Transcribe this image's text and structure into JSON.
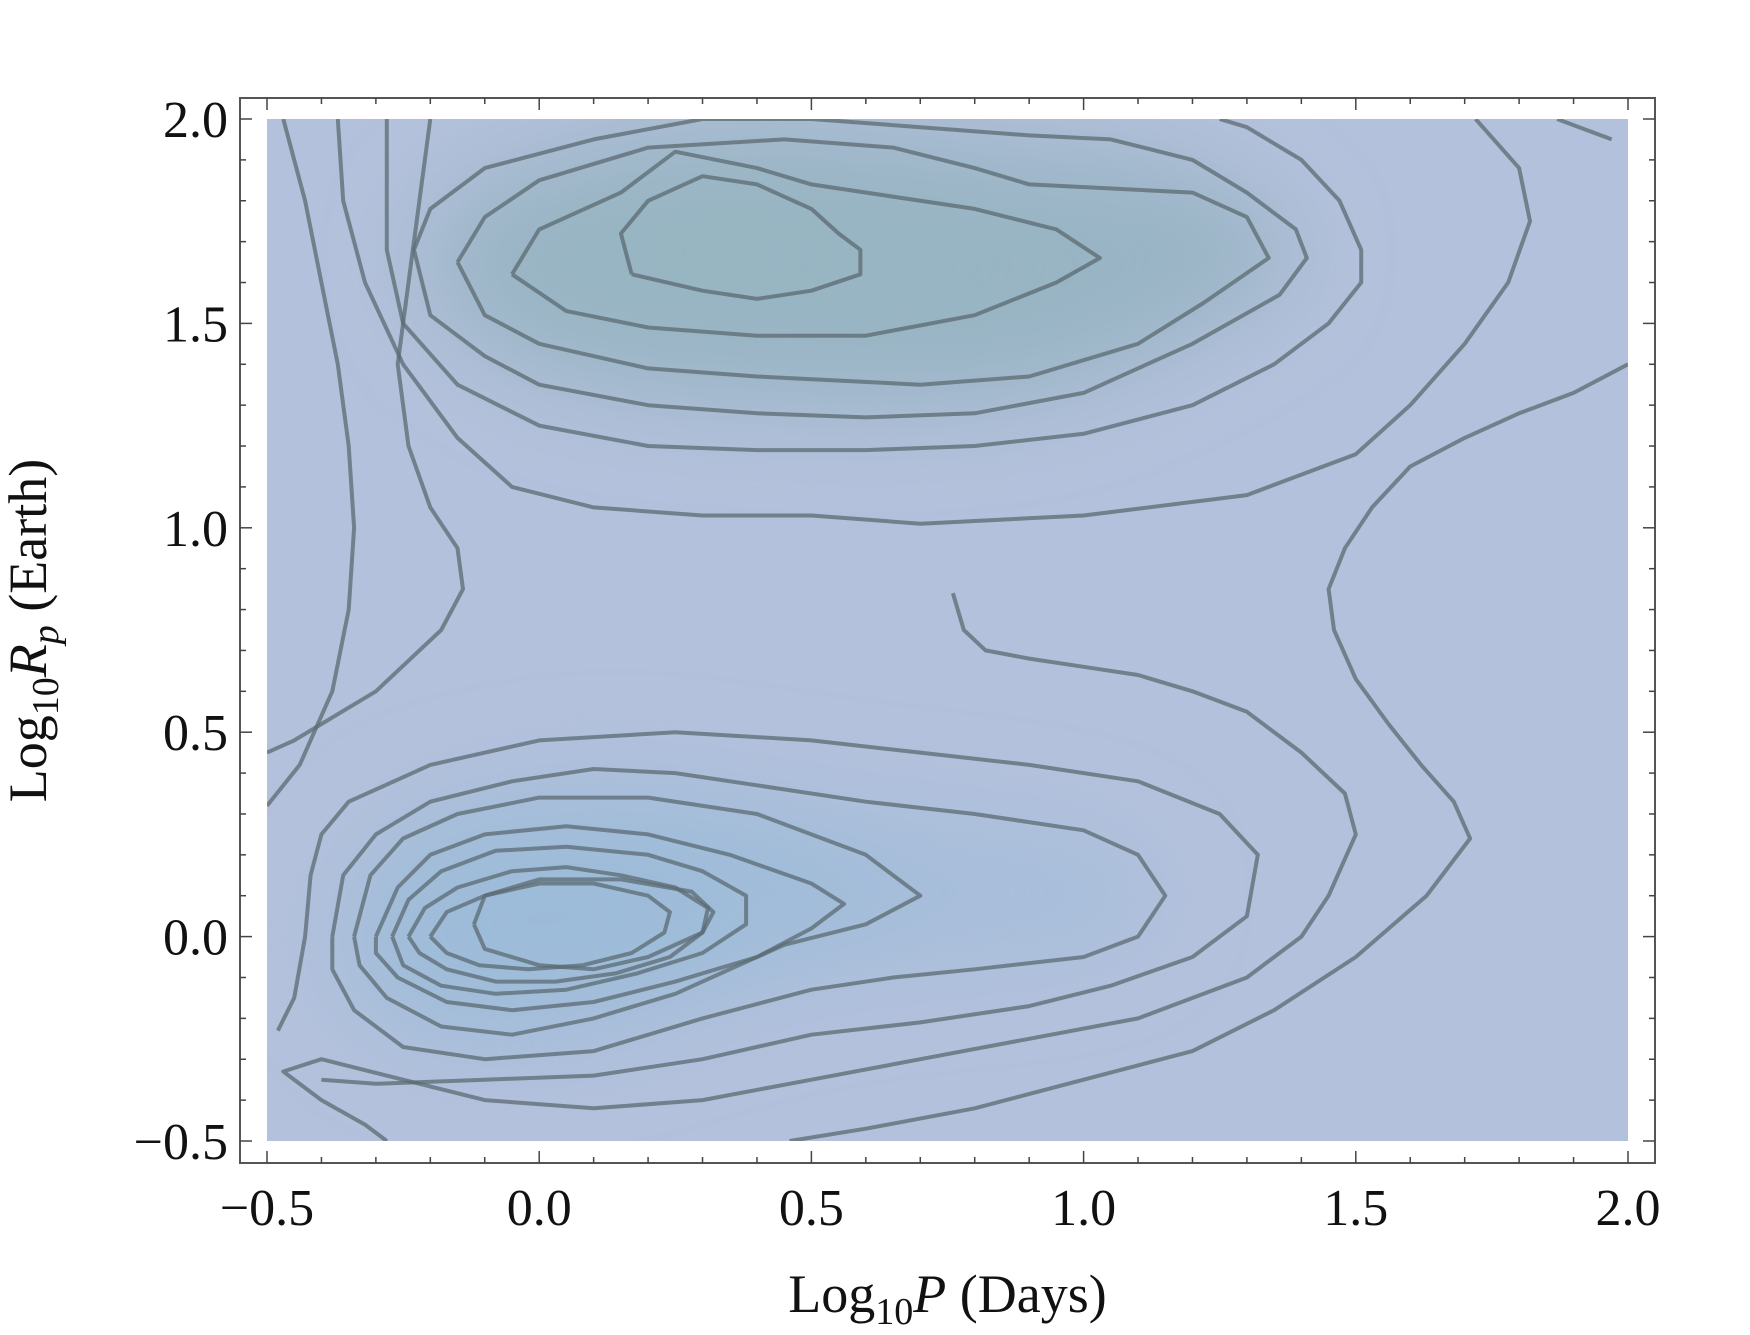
{
  "chart_data": {
    "type": "contour",
    "xlabel": {
      "prefix": "Log",
      "sub": "10",
      "var": "P",
      "suffix": " (Days)"
    },
    "ylabel": {
      "prefix": "Log",
      "sub": "10",
      "var": "R",
      "varsub": "p",
      "suffix": " (Earth)"
    },
    "xlim": [
      -0.5,
      2.0
    ],
    "ylim": [
      -0.5,
      2.0
    ],
    "x_ticks": [
      "−0.5",
      "0.0",
      "0.5",
      "1.0",
      "1.5",
      "2.0"
    ],
    "y_ticks": [
      "−0.5",
      "0.0",
      "0.5",
      "1.0",
      "1.5",
      "2.0"
    ],
    "colors": {
      "background_fill": "#b4c1dc",
      "peak_fill": "#7aa6b7",
      "contour_line": "#5b6b72"
    },
    "density_peaks": [
      {
        "x": 0.05,
        "y": 0.05,
        "amplitude": 1.0
      },
      {
        "x": 0.4,
        "y": 1.68,
        "amplitude": 0.78
      },
      {
        "x": 0.95,
        "y": 1.62,
        "amplitude": 0.45
      },
      {
        "x": 0.95,
        "y": 0.15,
        "amplitude": 0.3
      }
    ],
    "contours": [
      [
        [
          -0.12,
          0.03
        ],
        [
          -0.1,
          -0.03
        ],
        [
          0.0,
          -0.07
        ],
        [
          0.1,
          -0.08
        ],
        [
          0.2,
          -0.05
        ],
        [
          0.3,
          0.01
        ],
        [
          0.32,
          0.06
        ],
        [
          0.28,
          0.11
        ],
        [
          0.15,
          0.14
        ],
        [
          0.0,
          0.14
        ],
        [
          -0.1,
          0.1
        ],
        [
          -0.12,
          0.03
        ]
      ],
      [
        [
          0.17,
          1.62
        ],
        [
          0.3,
          1.58
        ],
        [
          0.4,
          1.56
        ],
        [
          0.5,
          1.58
        ],
        [
          0.59,
          1.62
        ],
        [
          0.59,
          1.68
        ],
        [
          0.55,
          1.72
        ],
        [
          0.5,
          1.78
        ],
        [
          0.4,
          1.84
        ],
        [
          0.3,
          1.86
        ],
        [
          0.2,
          1.8
        ],
        [
          0.15,
          1.72
        ],
        [
          0.17,
          1.62
        ]
      ],
      [
        [
          -0.05,
          1.62
        ],
        [
          0.05,
          1.53
        ],
        [
          0.2,
          1.49
        ],
        [
          0.4,
          1.47
        ],
        [
          0.6,
          1.47
        ],
        [
          0.8,
          1.52
        ],
        [
          0.95,
          1.6
        ],
        [
          1.03,
          1.66
        ],
        [
          0.95,
          1.73
        ],
        [
          0.8,
          1.78
        ],
        [
          0.5,
          1.84
        ],
        [
          0.4,
          1.88
        ],
        [
          0.25,
          1.92
        ],
        [
          0.15,
          1.82
        ],
        [
          0.0,
          1.73
        ],
        [
          -0.05,
          1.62
        ]
      ],
      [
        [
          -0.15,
          1.65
        ],
        [
          -0.1,
          1.52
        ],
        [
          0.0,
          1.45
        ],
        [
          0.2,
          1.39
        ],
        [
          0.4,
          1.37
        ],
        [
          0.7,
          1.35
        ],
        [
          0.9,
          1.37
        ],
        [
          1.1,
          1.45
        ],
        [
          1.22,
          1.55
        ],
        [
          1.34,
          1.66
        ],
        [
          1.3,
          1.76
        ],
        [
          1.2,
          1.82
        ],
        [
          0.9,
          1.84
        ],
        [
          0.8,
          1.88
        ],
        [
          0.65,
          1.93
        ],
        [
          0.45,
          1.95
        ],
        [
          0.2,
          1.93
        ],
        [
          0.0,
          1.85
        ],
        [
          -0.1,
          1.76
        ],
        [
          -0.15,
          1.65
        ]
      ],
      [
        [
          -0.23,
          1.68
        ],
        [
          -0.2,
          1.52
        ],
        [
          -0.1,
          1.42
        ],
        [
          0.0,
          1.35
        ],
        [
          0.2,
          1.3
        ],
        [
          0.4,
          1.28
        ],
        [
          0.6,
          1.27
        ],
        [
          0.8,
          1.28
        ],
        [
          1.0,
          1.33
        ],
        [
          1.2,
          1.45
        ],
        [
          1.36,
          1.57
        ],
        [
          1.41,
          1.66
        ],
        [
          1.39,
          1.73
        ],
        [
          1.3,
          1.82
        ],
        [
          1.2,
          1.9
        ],
        [
          1.05,
          1.95
        ],
        [
          0.9,
          1.96
        ],
        [
          0.7,
          1.98
        ],
        [
          0.5,
          2.0
        ],
        [
          0.3,
          2.0
        ],
        [
          0.1,
          1.95
        ],
        [
          -0.1,
          1.88
        ],
        [
          -0.2,
          1.78
        ],
        [
          -0.23,
          1.68
        ]
      ],
      [
        [
          -0.28,
          2.0
        ],
        [
          -0.28,
          1.68
        ],
        [
          -0.25,
          1.5
        ],
        [
          -0.15,
          1.35
        ],
        [
          0.0,
          1.25
        ],
        [
          0.2,
          1.2
        ],
        [
          0.4,
          1.19
        ],
        [
          0.6,
          1.19
        ],
        [
          0.8,
          1.2
        ],
        [
          1.0,
          1.23
        ],
        [
          1.2,
          1.3
        ],
        [
          1.35,
          1.4
        ],
        [
          1.45,
          1.5
        ],
        [
          1.51,
          1.6
        ],
        [
          1.51,
          1.68
        ],
        [
          1.47,
          1.8
        ],
        [
          1.4,
          1.9
        ],
        [
          1.3,
          1.98
        ],
        [
          1.25,
          2.0
        ]
      ],
      [
        [
          -0.37,
          2.0
        ],
        [
          -0.36,
          1.8
        ],
        [
          -0.32,
          1.6
        ],
        [
          -0.25,
          1.4
        ],
        [
          -0.15,
          1.22
        ],
        [
          -0.05,
          1.1
        ],
        [
          0.1,
          1.05
        ],
        [
          0.3,
          1.03
        ],
        [
          0.5,
          1.03
        ],
        [
          0.7,
          1.01
        ],
        [
          1.0,
          1.03
        ],
        [
          1.3,
          1.08
        ],
        [
          1.5,
          1.18
        ],
        [
          1.6,
          1.3
        ],
        [
          1.7,
          1.45
        ],
        [
          1.78,
          1.6
        ],
        [
          1.82,
          1.75
        ],
        [
          1.8,
          1.88
        ],
        [
          1.72,
          2.0
        ]
      ],
      [
        [
          -0.47,
          2.0
        ],
        [
          -0.43,
          1.8
        ],
        [
          -0.4,
          1.6
        ],
        [
          -0.37,
          1.4
        ],
        [
          -0.35,
          1.2
        ],
        [
          -0.34,
          1.0
        ],
        [
          -0.35,
          0.8
        ],
        [
          -0.38,
          0.6
        ],
        [
          -0.44,
          0.42
        ],
        [
          -0.5,
          0.32
        ]
      ],
      [
        [
          -0.2,
          2.0
        ],
        [
          -0.22,
          1.8
        ],
        [
          -0.24,
          1.6
        ],
        [
          -0.26,
          1.4
        ],
        [
          -0.24,
          1.2
        ],
        [
          -0.2,
          1.05
        ],
        [
          -0.15,
          0.95
        ],
        [
          -0.14,
          0.85
        ],
        [
          -0.18,
          0.75
        ],
        [
          -0.3,
          0.6
        ],
        [
          -0.45,
          0.48
        ],
        [
          -0.5,
          0.45
        ]
      ],
      [
        [
          1.97,
          1.95
        ],
        [
          1.93,
          1.97
        ],
        [
          1.87,
          2.0
        ]
      ],
      [
        [
          2.0,
          1.4
        ],
        [
          1.9,
          1.33
        ],
        [
          1.8,
          1.28
        ],
        [
          1.7,
          1.22
        ],
        [
          1.6,
          1.15
        ],
        [
          1.53,
          1.05
        ],
        [
          1.48,
          0.95
        ],
        [
          1.45,
          0.85
        ],
        [
          1.46,
          0.75
        ],
        [
          1.5,
          0.63
        ],
        [
          1.56,
          0.52
        ],
        [
          1.62,
          0.42
        ],
        [
          1.68,
          0.33
        ],
        [
          1.71,
          0.24
        ],
        [
          1.63,
          0.1
        ],
        [
          1.5,
          -0.05
        ],
        [
          1.35,
          -0.18
        ],
        [
          1.2,
          -0.28
        ],
        [
          1.0,
          -0.35
        ],
        [
          0.8,
          -0.42
        ],
        [
          0.6,
          -0.47
        ],
        [
          0.46,
          -0.5
        ]
      ],
      [
        [
          0.76,
          0.84
        ],
        [
          0.78,
          0.75
        ],
        [
          0.82,
          0.7
        ],
        [
          0.9,
          0.68
        ],
        [
          1.0,
          0.66
        ],
        [
          1.1,
          0.64
        ],
        [
          1.2,
          0.6
        ],
        [
          1.3,
          0.55
        ],
        [
          1.4,
          0.45
        ],
        [
          1.48,
          0.35
        ],
        [
          1.5,
          0.25
        ],
        [
          1.45,
          0.1
        ],
        [
          1.4,
          0.0
        ],
        [
          1.3,
          -0.1
        ],
        [
          1.1,
          -0.2
        ],
        [
          0.9,
          -0.25
        ],
        [
          0.7,
          -0.3
        ],
        [
          0.5,
          -0.35
        ],
        [
          0.3,
          -0.4
        ],
        [
          0.1,
          -0.42
        ],
        [
          -0.1,
          -0.4
        ],
        [
          -0.25,
          -0.35
        ],
        [
          -0.4,
          -0.3
        ],
        [
          -0.47,
          -0.33
        ],
        [
          -0.4,
          -0.4
        ],
        [
          -0.32,
          -0.46
        ],
        [
          -0.28,
          -0.5
        ]
      ],
      [
        [
          -0.48,
          -0.23
        ],
        [
          -0.45,
          -0.15
        ],
        [
          -0.43,
          0.0
        ],
        [
          -0.42,
          0.15
        ],
        [
          -0.4,
          0.25
        ],
        [
          -0.35,
          0.33
        ],
        [
          -0.2,
          0.42
        ],
        [
          0.0,
          0.48
        ],
        [
          0.25,
          0.5
        ],
        [
          0.5,
          0.48
        ],
        [
          0.7,
          0.45
        ],
        [
          0.9,
          0.42
        ],
        [
          1.1,
          0.38
        ],
        [
          1.25,
          0.3
        ],
        [
          1.32,
          0.2
        ],
        [
          1.3,
          0.05
        ],
        [
          1.2,
          -0.05
        ],
        [
          1.05,
          -0.12
        ],
        [
          0.9,
          -0.17
        ],
        [
          0.7,
          -0.21
        ],
        [
          0.5,
          -0.24
        ],
        [
          0.3,
          -0.3
        ],
        [
          0.1,
          -0.34
        ],
        [
          -0.1,
          -0.35
        ],
        [
          -0.3,
          -0.36
        ],
        [
          -0.4,
          -0.35
        ]
      ],
      [
        [
          -0.38,
          0.0
        ],
        [
          -0.36,
          0.15
        ],
        [
          -0.3,
          0.25
        ],
        [
          -0.2,
          0.33
        ],
        [
          -0.05,
          0.38
        ],
        [
          0.1,
          0.41
        ],
        [
          0.25,
          0.4
        ],
        [
          0.4,
          0.37
        ],
        [
          0.6,
          0.33
        ],
        [
          0.8,
          0.3
        ],
        [
          1.0,
          0.26
        ],
        [
          1.1,
          0.2
        ],
        [
          1.15,
          0.1
        ],
        [
          1.1,
          0.0
        ],
        [
          1.0,
          -0.05
        ],
        [
          0.8,
          -0.08
        ],
        [
          0.65,
          -0.1
        ],
        [
          0.5,
          -0.13
        ],
        [
          0.3,
          -0.2
        ],
        [
          0.1,
          -0.28
        ],
        [
          -0.1,
          -0.3
        ],
        [
          -0.25,
          -0.27
        ],
        [
          -0.34,
          -0.18
        ],
        [
          -0.38,
          -0.08
        ],
        [
          -0.38,
          0.0
        ]
      ],
      [
        [
          -0.34,
          0.0
        ],
        [
          -0.31,
          0.15
        ],
        [
          -0.25,
          0.24
        ],
        [
          -0.15,
          0.3
        ],
        [
          0.0,
          0.34
        ],
        [
          0.2,
          0.34
        ],
        [
          0.4,
          0.3
        ],
        [
          0.6,
          0.2
        ],
        [
          0.7,
          0.1
        ],
        [
          0.6,
          0.03
        ],
        [
          0.45,
          -0.02
        ],
        [
          0.35,
          -0.08
        ],
        [
          0.25,
          -0.14
        ],
        [
          0.1,
          -0.2
        ],
        [
          -0.05,
          -0.24
        ],
        [
          -0.18,
          -0.22
        ],
        [
          -0.28,
          -0.15
        ],
        [
          -0.33,
          -0.07
        ],
        [
          -0.34,
          0.0
        ]
      ],
      [
        [
          -0.3,
          0.0
        ],
        [
          -0.26,
          0.12
        ],
        [
          -0.2,
          0.2
        ],
        [
          -0.1,
          0.25
        ],
        [
          0.05,
          0.27
        ],
        [
          0.2,
          0.25
        ],
        [
          0.35,
          0.2
        ],
        [
          0.5,
          0.13
        ],
        [
          0.56,
          0.08
        ],
        [
          0.5,
          0.02
        ],
        [
          0.4,
          -0.05
        ],
        [
          0.25,
          -0.11
        ],
        [
          0.1,
          -0.16
        ],
        [
          -0.05,
          -0.18
        ],
        [
          -0.17,
          -0.16
        ],
        [
          -0.26,
          -0.1
        ],
        [
          -0.3,
          -0.04
        ],
        [
          -0.3,
          0.0
        ]
      ],
      [
        [
          -0.27,
          0.0
        ],
        [
          -0.24,
          0.09
        ],
        [
          -0.18,
          0.16
        ],
        [
          -0.08,
          0.21
        ],
        [
          0.05,
          0.22
        ],
        [
          0.2,
          0.2
        ],
        [
          0.3,
          0.16
        ],
        [
          0.38,
          0.1
        ],
        [
          0.38,
          0.03
        ],
        [
          0.3,
          -0.04
        ],
        [
          0.18,
          -0.09
        ],
        [
          0.05,
          -0.13
        ],
        [
          -0.08,
          -0.14
        ],
        [
          -0.18,
          -0.12
        ],
        [
          -0.25,
          -0.07
        ],
        [
          -0.27,
          0.0
        ]
      ],
      [
        [
          -0.24,
          0.0
        ],
        [
          -0.21,
          0.07
        ],
        [
          -0.15,
          0.12
        ],
        [
          -0.05,
          0.16
        ],
        [
          0.05,
          0.17
        ],
        [
          0.15,
          0.15
        ],
        [
          0.25,
          0.12
        ],
        [
          0.31,
          0.07
        ],
        [
          0.3,
          0.01
        ],
        [
          0.24,
          -0.05
        ],
        [
          0.14,
          -0.09
        ],
        [
          0.03,
          -0.11
        ],
        [
          -0.08,
          -0.11
        ],
        [
          -0.17,
          -0.08
        ],
        [
          -0.22,
          -0.04
        ],
        [
          -0.24,
          0.0
        ]
      ],
      [
        [
          -0.2,
          0.0
        ],
        [
          -0.17,
          0.06
        ],
        [
          -0.1,
          0.1
        ],
        [
          0.0,
          0.13
        ],
        [
          0.1,
          0.13
        ],
        [
          0.2,
          0.1
        ],
        [
          0.24,
          0.06
        ],
        [
          0.23,
          0.01
        ],
        [
          0.17,
          -0.04
        ],
        [
          0.08,
          -0.07
        ],
        [
          -0.02,
          -0.08
        ],
        [
          -0.11,
          -0.07
        ],
        [
          -0.17,
          -0.04
        ],
        [
          -0.2,
          0.0
        ]
      ]
    ]
  }
}
